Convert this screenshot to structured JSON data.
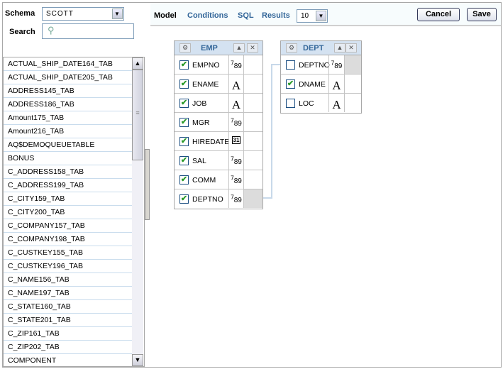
{
  "schema": {
    "label": "Schema",
    "value": "SCOTT"
  },
  "search": {
    "label": "Search",
    "placeholder": ""
  },
  "tables": [
    "ACTUAL_SHIP_DATE164_TAB",
    "ACTUAL_SHIP_DATE205_TAB",
    "ADDRESS145_TAB",
    "ADDRESS186_TAB",
    "Amount175_TAB",
    "Amount216_TAB",
    "AQ$DEMOQUEUETABLE",
    "BONUS",
    "C_ADDRESS158_TAB",
    "C_ADDRESS199_TAB",
    "C_CITY159_TAB",
    "C_CITY200_TAB",
    "C_COMPANY157_TAB",
    "C_COMPANY198_TAB",
    "C_CUSTKEY155_TAB",
    "C_CUSTKEY196_TAB",
    "C_NAME156_TAB",
    "C_NAME197_TAB",
    "C_STATE160_TAB",
    "C_STATE201_TAB",
    "C_ZIP161_TAB",
    "C_ZIP202_TAB",
    "COMPONENT"
  ],
  "tabs": {
    "model": "Model",
    "conditions": "Conditions",
    "sql": "SQL",
    "results": "Results"
  },
  "results_count": "10",
  "buttons": {
    "cancel": "Cancel",
    "save": "Save"
  },
  "emp": {
    "name": "EMP",
    "columns": [
      {
        "name": "EMPNO",
        "type": "789",
        "checked": true
      },
      {
        "name": "ENAME",
        "type": "A",
        "checked": true
      },
      {
        "name": "JOB",
        "type": "A",
        "checked": true
      },
      {
        "name": "MGR",
        "type": "789",
        "checked": true
      },
      {
        "name": "HIREDATE",
        "type": "31",
        "checked": true
      },
      {
        "name": "SAL",
        "type": "789",
        "checked": true
      },
      {
        "name": "COMM",
        "type": "789",
        "checked": true
      },
      {
        "name": "DEPTNO",
        "type": "789",
        "checked": true,
        "key": true
      }
    ]
  },
  "dept": {
    "name": "DEPT",
    "columns": [
      {
        "name": "DEPTNO",
        "type": "789",
        "checked": false,
        "key": true
      },
      {
        "name": "DNAME",
        "type": "A",
        "checked": true
      },
      {
        "name": "LOC",
        "type": "A",
        "checked": false
      }
    ]
  }
}
